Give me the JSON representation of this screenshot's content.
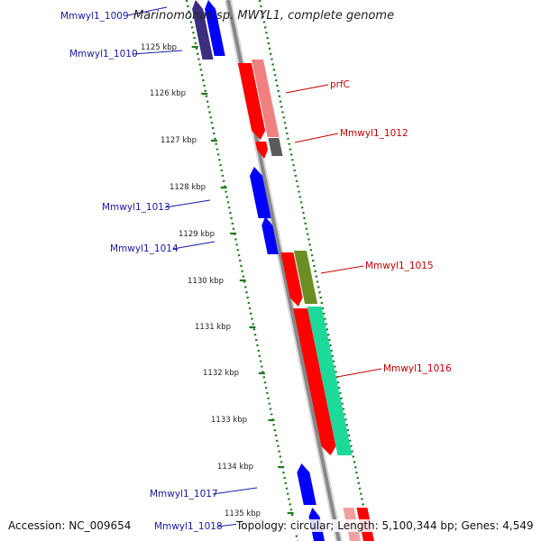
{
  "title": "Marinomonas sp. MWYL1, complete genome",
  "accession": "Accession: NC_009654",
  "topology": "Topology: circular; Length: 5,100,344 bp; Genes: 4,549",
  "ticks": [
    "1125 kbp",
    "1126 kbp",
    "1127 kbp",
    "1128 kbp",
    "1129 kbp",
    "1130 kbp",
    "1131 kbp",
    "1132 kbp",
    "1133 kbp",
    "1134 kbp",
    "1135 kbp"
  ],
  "genes": [
    {
      "label": "Mmwyl1_1009",
      "strand": "reverse",
      "color": "#1a1aa6"
    },
    {
      "label": "Mmwyl1_1010",
      "strand": "reverse",
      "color": "#1a1aa6"
    },
    {
      "label": "prfC",
      "strand": "forward",
      "color": "#c00000"
    },
    {
      "label": "Mmwyl1_1012",
      "strand": "forward",
      "color": "#c00000"
    },
    {
      "label": "Mmwyl1_1013",
      "strand": "reverse",
      "color": "#1a1aa6"
    },
    {
      "label": "Mmwyl1_1014",
      "strand": "reverse",
      "color": "#1a1aa6"
    },
    {
      "label": "Mmwyl1_1015",
      "strand": "forward",
      "color": "#c00000"
    },
    {
      "label": "Mmwyl1_1016",
      "strand": "forward",
      "color": "#c00000"
    },
    {
      "label": "Mmwyl1_1017",
      "strand": "reverse",
      "color": "#1a1aa6"
    },
    {
      "label": "Mmwyl1_1018",
      "strand": "reverse",
      "color": "#1a1aa6"
    }
  ],
  "colors": {
    "backbone": "#888888",
    "gc_ticks": "#1f7a1f",
    "forward_cds": "#ff0000",
    "reverse_cds": "#0000ff",
    "cog_pink": "#f08080",
    "cog_gray": "#5a5a5a",
    "cog_olive": "#6b8e23",
    "cog_aqua": "#1dd99a"
  }
}
